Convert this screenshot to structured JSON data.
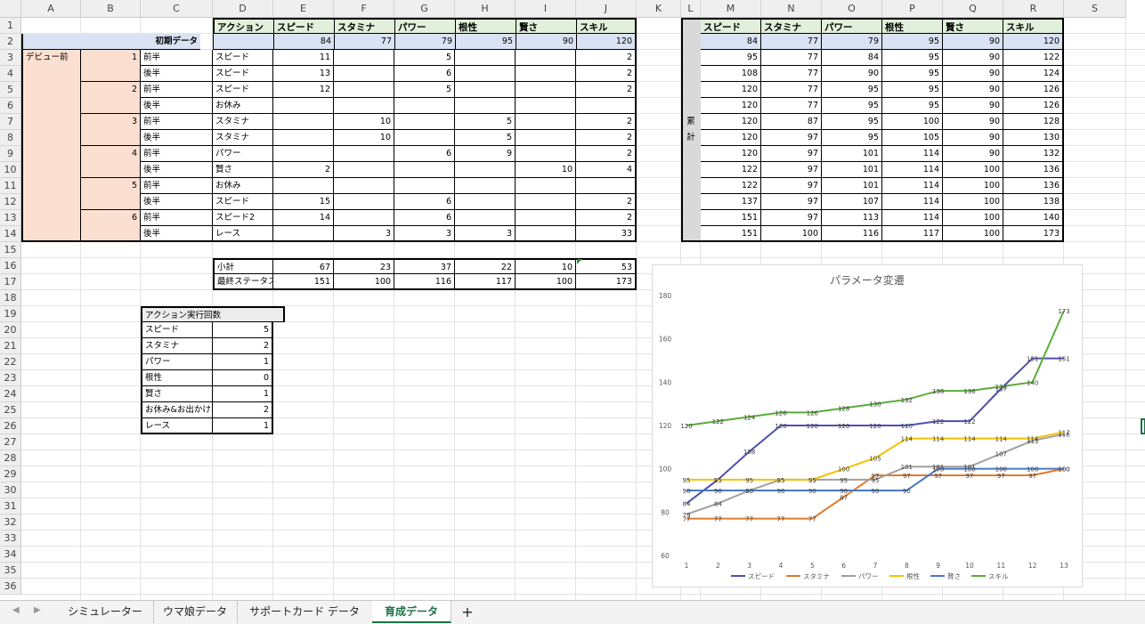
{
  "columns": [
    "A",
    "B",
    "C",
    "D",
    "E",
    "F",
    "G",
    "H",
    "I",
    "J",
    "K",
    "L",
    "M",
    "N",
    "O",
    "P",
    "Q",
    "R",
    "S"
  ],
  "rows": [
    "1",
    "2",
    "3",
    "4",
    "5",
    "6",
    "7",
    "8",
    "9",
    "10",
    "11",
    "12",
    "13",
    "14",
    "15",
    "16",
    "17",
    "18",
    "19",
    "20",
    "21",
    "22",
    "23",
    "24",
    "25",
    "26",
    "27",
    "28",
    "29",
    "30",
    "31",
    "32",
    "33",
    "34",
    "35",
    "36"
  ],
  "headers": [
    "アクション",
    "スピード",
    "スタミナ",
    "パワー",
    "根性",
    "賢さ",
    "スキル"
  ],
  "initial_label": "初期データ",
  "initial_values": [
    "84",
    "77",
    "79",
    "95",
    "90",
    "120"
  ],
  "debut_label": "デビュー前",
  "turns": [
    "1",
    "2",
    "3",
    "4",
    "5",
    "6"
  ],
  "halves": [
    "前半",
    "後半",
    "前半",
    "後半",
    "前半",
    "後半",
    "前半",
    "後半",
    "前半",
    "後半",
    "前半",
    "後半"
  ],
  "actions": [
    "スピード",
    "スピード",
    "スピード",
    "お休み",
    "スタミナ",
    "スタミナ",
    "パワー",
    "賢さ",
    "お休み",
    "スピード",
    "スピード2",
    "レース"
  ],
  "action_values": [
    [
      "11",
      "",
      "5",
      "",
      "",
      "2"
    ],
    [
      "13",
      "",
      "6",
      "",
      "",
      "2"
    ],
    [
      "12",
      "",
      "5",
      "",
      "",
      "2"
    ],
    [
      "",
      "",
      "",
      "",
      "",
      ""
    ],
    [
      "",
      "10",
      "",
      "5",
      "",
      "2"
    ],
    [
      "",
      "10",
      "",
      "5",
      "",
      "2"
    ],
    [
      "",
      "",
      "6",
      "9",
      "",
      "2"
    ],
    [
      "2",
      "",
      "",
      "",
      "10",
      "4"
    ],
    [
      "",
      "",
      "",
      "",
      "",
      ""
    ],
    [
      "15",
      "",
      "6",
      "",
      "",
      "2"
    ],
    [
      "14",
      "",
      "6",
      "",
      "",
      "2"
    ],
    [
      "",
      "3",
      "3",
      "3",
      "",
      "33"
    ]
  ],
  "subtotal_label": "小計",
  "subtotal_values": [
    "67",
    "23",
    "37",
    "22",
    "10",
    "53"
  ],
  "final_label": "最終ステータス",
  "final_values": [
    "151",
    "100",
    "116",
    "117",
    "100",
    "173"
  ],
  "count_table": {
    "title": "アクション実行回数",
    "items": [
      {
        "label": "スピード",
        "value": "5"
      },
      {
        "label": "スタミナ",
        "value": "2"
      },
      {
        "label": "パワー",
        "value": "1"
      },
      {
        "label": "根性",
        "value": "0"
      },
      {
        "label": "賢さ",
        "value": "1"
      },
      {
        "label": "お休み&お出かけ",
        "value": "2"
      },
      {
        "label": "レース",
        "value": "1"
      }
    ]
  },
  "cumulative_label_1": "累",
  "cumulative_label_2": "計",
  "cum_headers": [
    "スピード",
    "スタミナ",
    "パワー",
    "根性",
    "賢さ",
    "スキル"
  ],
  "cumulative": [
    [
      "84",
      "77",
      "79",
      "95",
      "90",
      "120"
    ],
    [
      "95",
      "77",
      "84",
      "95",
      "90",
      "122"
    ],
    [
      "108",
      "77",
      "90",
      "95",
      "90",
      "124"
    ],
    [
      "120",
      "77",
      "95",
      "95",
      "90",
      "126"
    ],
    [
      "120",
      "77",
      "95",
      "95",
      "90",
      "126"
    ],
    [
      "120",
      "87",
      "95",
      "100",
      "90",
      "128"
    ],
    [
      "120",
      "97",
      "95",
      "105",
      "90",
      "130"
    ],
    [
      "120",
      "97",
      "101",
      "114",
      "90",
      "132"
    ],
    [
      "122",
      "97",
      "101",
      "114",
      "100",
      "136"
    ],
    [
      "122",
      "97",
      "101",
      "114",
      "100",
      "136"
    ],
    [
      "137",
      "97",
      "107",
      "114",
      "100",
      "138"
    ],
    [
      "151",
      "97",
      "113",
      "114",
      "100",
      "140"
    ],
    [
      "151",
      "100",
      "116",
      "117",
      "100",
      "173"
    ]
  ],
  "tabs": [
    "シミュレーター",
    "ウマ娘データ",
    "サポートカード データ",
    "育成データ"
  ],
  "add_tab": "+",
  "nav_prev": "◀",
  "nav_next": "▶",
  "chart_data": {
    "type": "line",
    "title": "パラメータ変遷",
    "x": [
      1,
      2,
      3,
      4,
      5,
      6,
      7,
      8,
      9,
      10,
      11,
      12,
      13
    ],
    "ylim": [
      60,
      180
    ],
    "yticks": [
      60,
      80,
      100,
      120,
      140,
      160,
      180
    ],
    "grid": false,
    "legend_position": "bottom",
    "series": [
      {
        "name": "スピード",
        "color": "#4f4fae",
        "values": [
          84,
          95,
          108,
          120,
          120,
          120,
          120,
          120,
          122,
          122,
          137,
          151,
          151
        ]
      },
      {
        "name": "スタミナ",
        "color": "#e07b2a",
        "values": [
          77,
          77,
          77,
          77,
          77,
          87,
          97,
          97,
          97,
          97,
          97,
          97,
          100
        ]
      },
      {
        "name": "パワー",
        "color": "#a0a0a0",
        "values": [
          79,
          84,
          90,
          95,
          95,
          95,
          95,
          101,
          101,
          101,
          107,
          113,
          116
        ]
      },
      {
        "name": "根性",
        "color": "#f2c200",
        "values": [
          95,
          95,
          95,
          95,
          95,
          100,
          105,
          114,
          114,
          114,
          114,
          114,
          117
        ]
      },
      {
        "name": "賢さ",
        "color": "#4a78c4",
        "values": [
          90,
          90,
          90,
          90,
          90,
          90,
          90,
          90,
          100,
          100,
          100,
          100,
          100
        ]
      },
      {
        "name": "スキル",
        "color": "#5aac3a",
        "values": [
          120,
          122,
          124,
          126,
          126,
          128,
          130,
          132,
          136,
          136,
          138,
          140,
          173
        ]
      }
    ]
  }
}
